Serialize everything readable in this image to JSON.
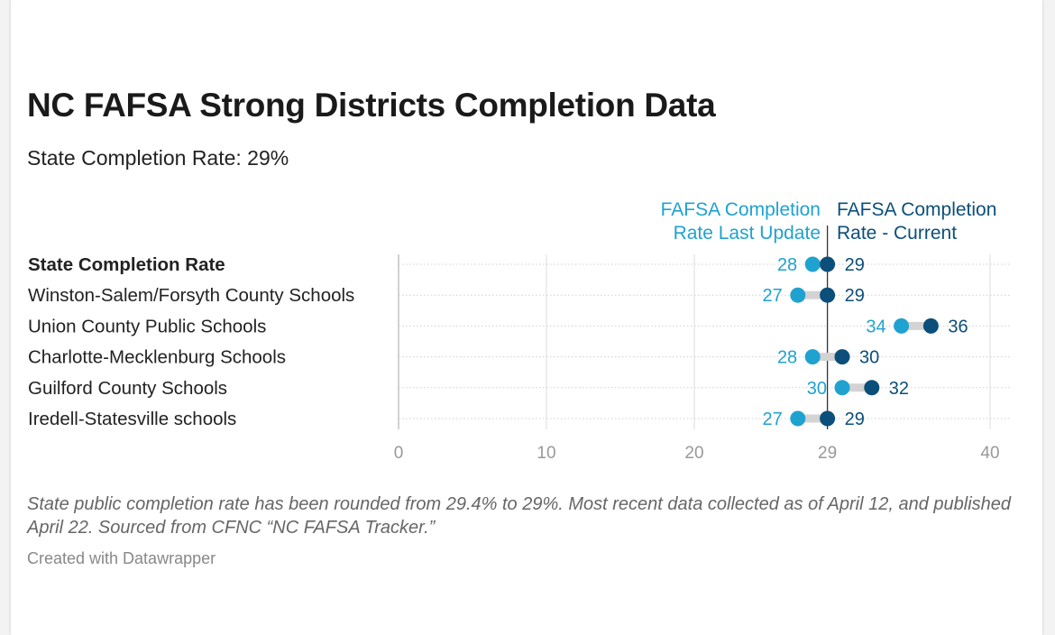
{
  "title": "NC FAFSA Strong Districts Completion Data",
  "subtitle": "State Completion Rate: 29%",
  "notes": "State public completion rate has been rounded from 29.4% to 29%. Most recent data collected as of April 12, and published April 22. Sourced from CFNC “NC FAFSA Tracker.”",
  "credit": "Created with Datawrapper",
  "colors": {
    "last": "#1fa2d0",
    "current": "#0b4f7a",
    "connector": "#d3d3d3",
    "grid": "#dcdcdc"
  },
  "chart_data": {
    "type": "dot-range",
    "legend": [
      {
        "key": "last",
        "lines": [
          "FAFSA Completion",
          "Rate Last Update"
        ]
      },
      {
        "key": "current",
        "lines": [
          "FAFSA Completion",
          "Rate - Current"
        ]
      }
    ],
    "categories": [
      "State Completion Rate",
      "Winston-Salem/Forsyth County Schools",
      "Union County Public Schools",
      "Charlotte-Mecklenburg Schools",
      "Guilford County Schools",
      "Iredell-Statesville schools"
    ],
    "bold_category": "State Completion Rate",
    "series": [
      {
        "name": "FAFSA Completion Rate Last Update",
        "key": "last",
        "values": [
          28,
          27,
          34,
          28,
          30,
          27
        ],
        "labels": [
          "28",
          "27",
          "34",
          "28",
          "30",
          "27"
        ]
      },
      {
        "name": "FAFSA Completion Rate - Current",
        "key": "current",
        "values": [
          29,
          29,
          36,
          30,
          32,
          29
        ],
        "labels": [
          "29",
          "29",
          "36",
          "30",
          "32",
          "29"
        ]
      }
    ],
    "xlim": [
      0,
      40
    ],
    "xticks": [
      0,
      10,
      20,
      29,
      40
    ],
    "xtick_labels": [
      "0",
      "10",
      "20",
      "29",
      "40"
    ],
    "reference_line": 29,
    "grid": true
  }
}
